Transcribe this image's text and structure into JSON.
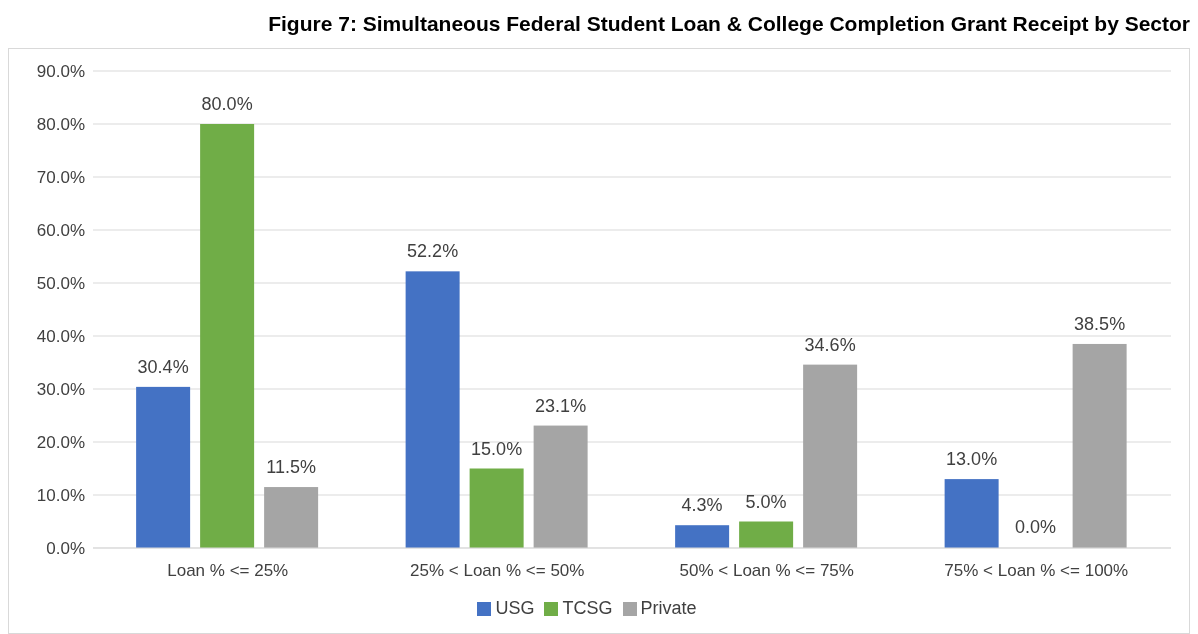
{
  "chart_data": {
    "type": "bar",
    "title": "Figure 7: Simultaneous Federal Student Loan & College Completion Grant Receipt by Sector",
    "categories": [
      "Loan % <= 25%",
      "25% < Loan % <= 50%",
      "50% < Loan % <= 75%",
      "75% < Loan % <= 100%"
    ],
    "series": [
      {
        "name": "USG",
        "color": "#4472c4",
        "values": [
          30.4,
          52.2,
          4.3,
          13.0
        ],
        "value_labels": [
          "30.4%",
          "52.2%",
          "4.3%",
          "13.0%"
        ]
      },
      {
        "name": "TCSG",
        "color": "#70ad47",
        "values": [
          80.0,
          15.0,
          5.0,
          0.0
        ],
        "value_labels": [
          "80.0%",
          "15.0%",
          "5.0%",
          "0.0%"
        ]
      },
      {
        "name": "Private",
        "color": "#a5a5a5",
        "values": [
          11.5,
          23.1,
          34.6,
          38.5
        ],
        "value_labels": [
          "11.5%",
          "23.1%",
          "34.6%",
          "38.5%"
        ]
      }
    ],
    "ylim": [
      0,
      90
    ],
    "yticks": [
      {
        "value": 0,
        "label": "0.0%"
      },
      {
        "value": 10,
        "label": "10.0%"
      },
      {
        "value": 20,
        "label": "20.0%"
      },
      {
        "value": 30,
        "label": "30.0%"
      },
      {
        "value": 40,
        "label": "40.0%"
      },
      {
        "value": 50,
        "label": "50.0%"
      },
      {
        "value": 60,
        "label": "60.0%"
      },
      {
        "value": 70,
        "label": "70.0%"
      },
      {
        "value": 80,
        "label": "80.0%"
      },
      {
        "value": 90,
        "label": "90.0%"
      }
    ],
    "grid": "y",
    "legend": "bottom"
  }
}
